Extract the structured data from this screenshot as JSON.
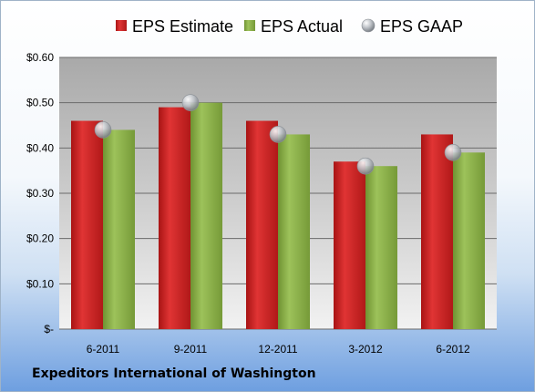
{
  "company": "Expeditors International of Washington",
  "colors": {
    "estimate": "#d42a2a",
    "actual": "#8db04a",
    "gaap": "#a8adb3"
  },
  "chart_data": {
    "type": "bar",
    "title": "",
    "xlabel": "",
    "ylabel": "",
    "categories": [
      "6-2011",
      "9-2011",
      "12-2011",
      "3-2012",
      "6-2012"
    ],
    "ylim": [
      0,
      0.6
    ],
    "yticks": [
      {
        "value": 0.6,
        "label": "$0.60"
      },
      {
        "value": 0.5,
        "label": "$0.50"
      },
      {
        "value": 0.4,
        "label": "$0.40"
      },
      {
        "value": 0.3,
        "label": "$0.30"
      },
      {
        "value": 0.2,
        "label": "$0.20"
      },
      {
        "value": 0.1,
        "label": "$0.10"
      },
      {
        "value": 0,
        "label": "$-"
      }
    ],
    "legend_position": "top",
    "grid": true,
    "series": [
      {
        "name": "EPS Estimate",
        "kind": "bar",
        "values": [
          0.46,
          0.49,
          0.46,
          0.37,
          0.43
        ]
      },
      {
        "name": "EPS Actual",
        "kind": "bar",
        "values": [
          0.44,
          0.5,
          0.43,
          0.36,
          0.39
        ]
      },
      {
        "name": "EPS GAAP",
        "kind": "marker",
        "values": [
          0.44,
          0.5,
          0.43,
          0.36,
          0.39
        ]
      }
    ]
  }
}
